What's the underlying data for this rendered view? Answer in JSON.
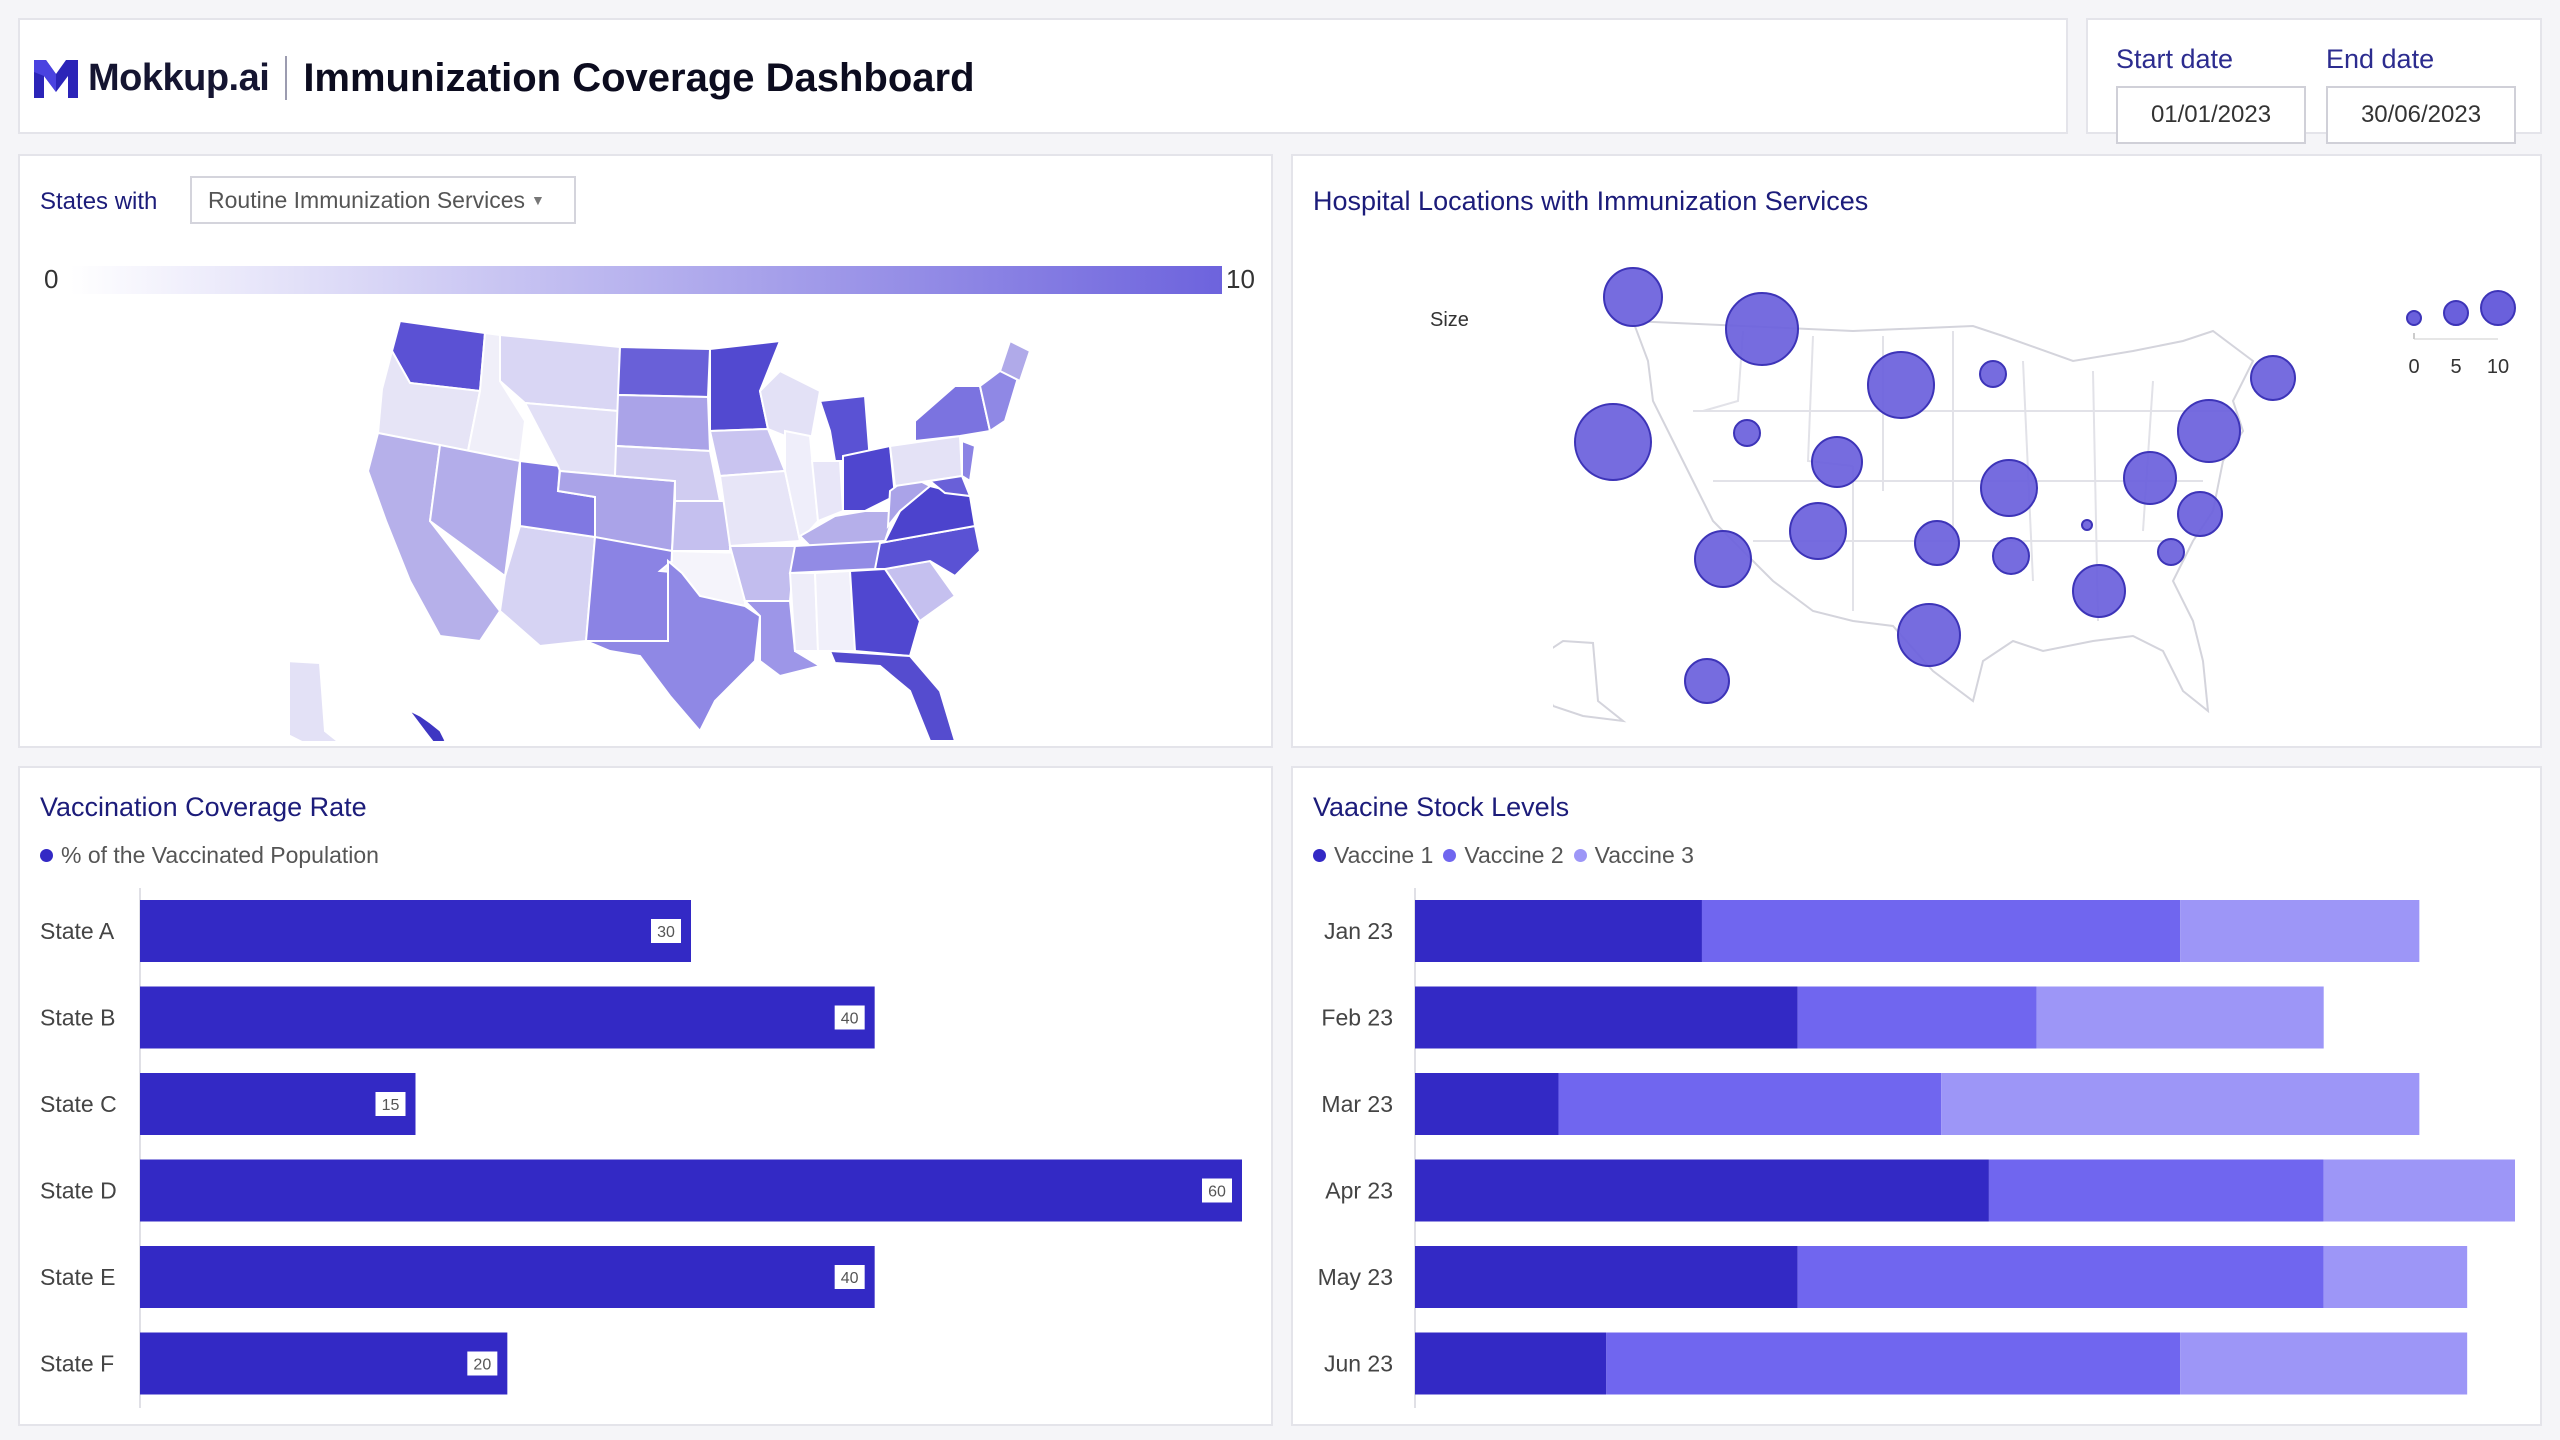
{
  "header": {
    "logo_text": "Mokkup.ai",
    "title": "Immunization Coverage Dashboard"
  },
  "dates": {
    "start_label": "Start date",
    "start_value": "01/01/2023",
    "end_label": "End date",
    "end_value": "30/06/2023"
  },
  "states_panel": {
    "label": "States with",
    "dropdown_value": "Routine Immunization Services",
    "scale_min": "0",
    "scale_max": "10",
    "colors": {
      "low": "#ffffff",
      "high": "#6d63dd"
    }
  },
  "hospital_panel": {
    "title": "Hospital Locations with Immunization Services",
    "size_legend_title": "Size",
    "size_legend_values": [
      "0",
      "5",
      "10"
    ],
    "bubble_color": "#6d63dd"
  },
  "coverage_panel": {
    "title": "Vaccination Coverage Rate",
    "legend": "% of the Vaccinated Population",
    "color": "#3329c5"
  },
  "stock_panel": {
    "title": "Vaacine Stock Levels",
    "legend": [
      "Vaccine 1",
      "Vaccine 2",
      "Vaccine 3"
    ],
    "colors": [
      "#3329c5",
      "#7066ef",
      "#9d96f7"
    ]
  },
  "chart_data": [
    {
      "type": "bar",
      "orientation": "horizontal",
      "title": "Vaccination Coverage Rate",
      "categories": [
        "State A",
        "State B",
        "State C",
        "State D",
        "State E",
        "State F"
      ],
      "series": [
        {
          "name": "% of the Vaccinated Population",
          "values": [
            30,
            40,
            15,
            60,
            40,
            20
          ]
        }
      ],
      "xlim": [
        0,
        60
      ]
    },
    {
      "type": "bar",
      "orientation": "horizontal",
      "stacked": true,
      "title": "Vaacine Stock Levels",
      "categories": [
        "Jan 23",
        "Feb 23",
        "Mar 23",
        "Apr 23",
        "May 23",
        "Jun 23"
      ],
      "series": [
        {
          "name": "Vaccine 1",
          "values": [
            3,
            4,
            1.5,
            6,
            4,
            2
          ]
        },
        {
          "name": "Vaccine 2",
          "values": [
            5,
            2.5,
            4,
            3.5,
            5.5,
            6
          ]
        },
        {
          "name": "Vaccine 3",
          "values": [
            2.5,
            3,
            5,
            2,
            1.5,
            3
          ]
        }
      ],
      "xlim": [
        0,
        11.5
      ]
    }
  ]
}
